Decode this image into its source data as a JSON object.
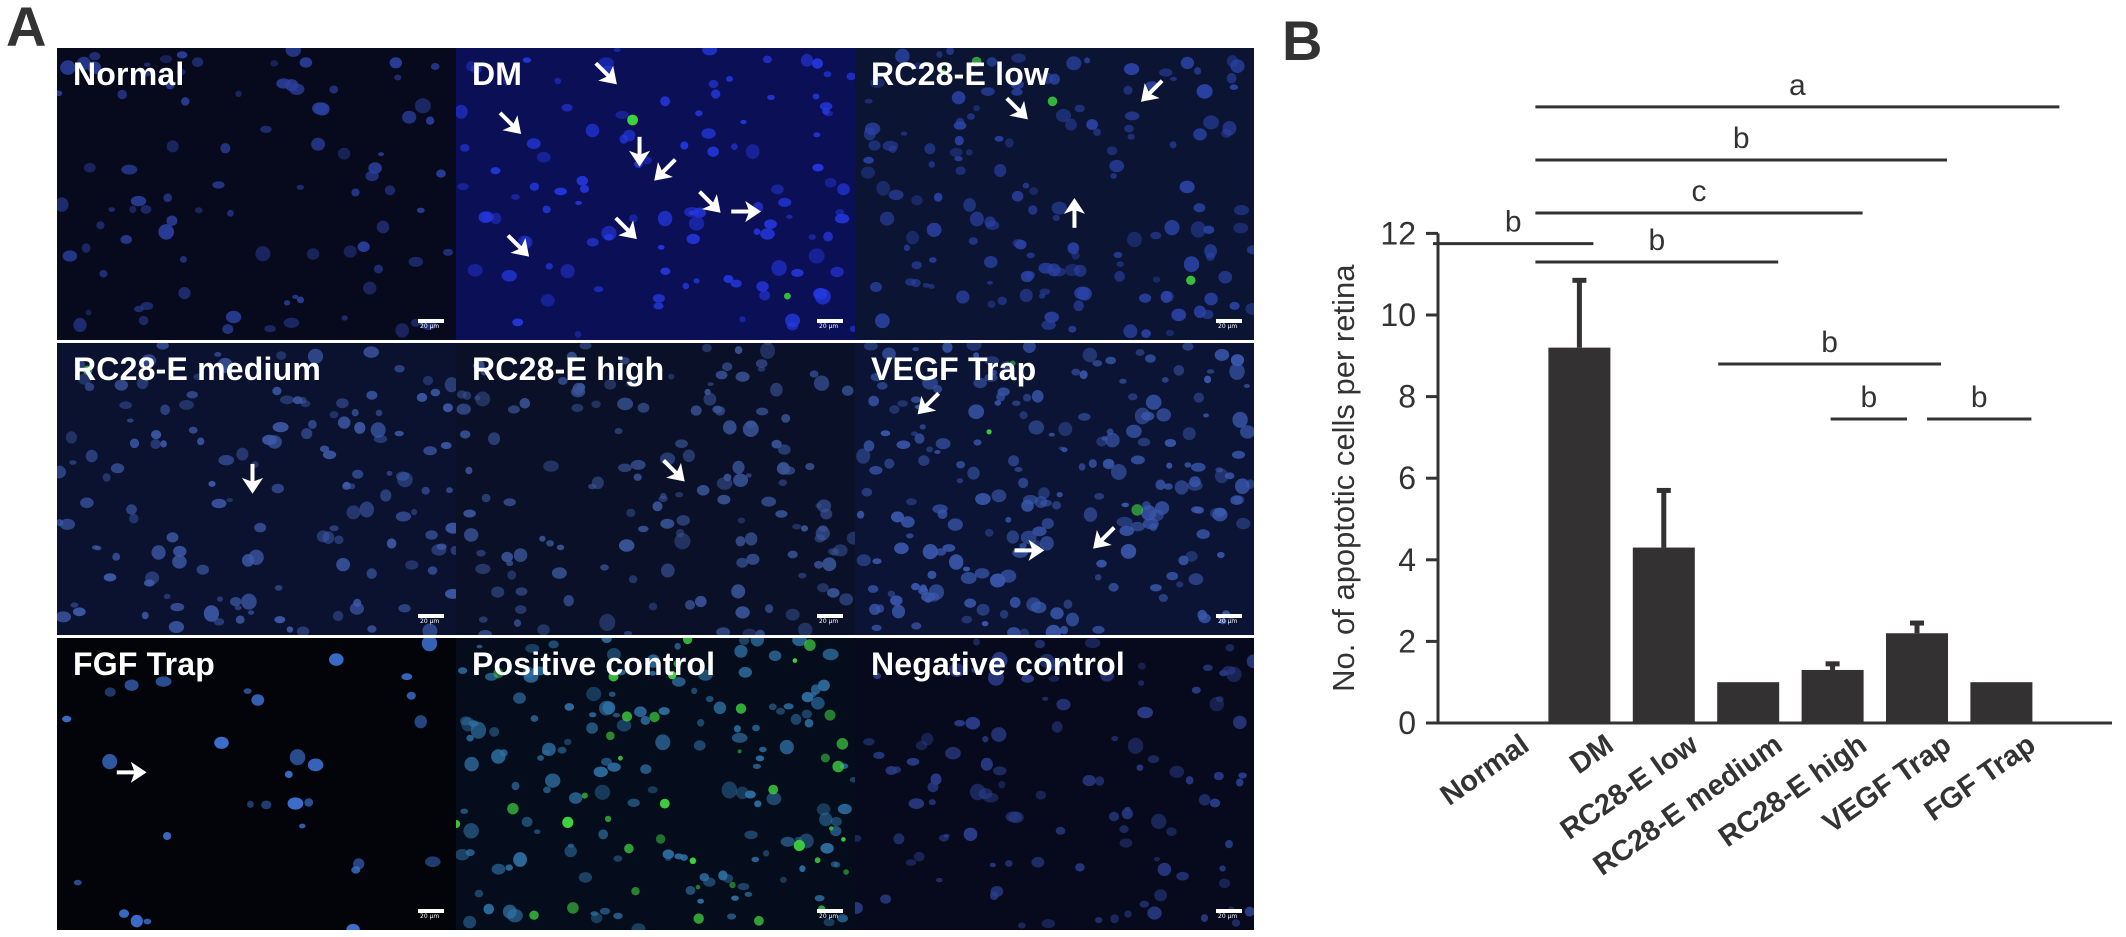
{
  "panel_a": {
    "letter": "A",
    "scale_text": "20 µm",
    "images": [
      {
        "label": "Normal",
        "bg": "#070a1c",
        "cell": "#2b3f9c",
        "density": 90,
        "seed": 3,
        "green": 0,
        "arrows": []
      },
      {
        "label": "DM",
        "bg": "#0b0f55",
        "cell": "#2438e0",
        "density": 110,
        "seed": 11,
        "green": 2,
        "arrows": [
          [
            0.16,
            0.29,
            "dr"
          ],
          [
            0.4,
            0.12,
            "dr"
          ],
          [
            0.46,
            0.4,
            "d"
          ],
          [
            0.5,
            0.45,
            "dl"
          ],
          [
            0.66,
            0.56,
            "dr"
          ],
          [
            0.45,
            0.65,
            "dr"
          ],
          [
            0.18,
            0.71,
            "dr"
          ],
          [
            0.76,
            0.56,
            "r"
          ]
        ]
      },
      {
        "label": "RC28-E low",
        "bg": "#0b1433",
        "cell": "#2b43a6",
        "density": 150,
        "seed": 21,
        "green": 4,
        "arrows": [
          [
            0.43,
            0.24,
            "dr"
          ],
          [
            0.72,
            0.18,
            "dl"
          ],
          [
            0.55,
            0.52,
            "u"
          ]
        ]
      },
      {
        "label": "RC28-E medium",
        "bg": "#0b1230",
        "cell": "#3d5aa8",
        "density": 140,
        "seed": 31,
        "green": 1,
        "arrows": [
          [
            0.49,
            0.51,
            "d"
          ]
        ]
      },
      {
        "label": "RC28-E high",
        "bg": "#0a1027",
        "cell": "#3a5599",
        "density": 150,
        "seed": 41,
        "green": 0,
        "arrows": [
          [
            0.57,
            0.47,
            "dr"
          ]
        ]
      },
      {
        "label": "VEGF Trap",
        "bg": "#0b1434",
        "cell": "#3a58ae",
        "density": 220,
        "seed": 51,
        "green": 3,
        "arrows": [
          [
            0.16,
            0.24,
            "dl"
          ],
          [
            0.47,
            0.71,
            "r"
          ],
          [
            0.6,
            0.7,
            "dl"
          ]
        ]
      },
      {
        "label": "FGF Trap",
        "bg": "#02040a",
        "cell": "#3f74d6",
        "density": 30,
        "seed": 61,
        "green": 0,
        "arrows": [
          [
            0.22,
            0.46,
            "r"
          ]
        ]
      },
      {
        "label": "Positive control",
        "bg": "#050d1c",
        "cell": "#2f70a3",
        "density": 150,
        "seed": 71,
        "green": 40,
        "arrows": []
      },
      {
        "label": "Negative control",
        "bg": "#060a1c",
        "cell": "#2b3e8c",
        "density": 110,
        "seed": 81,
        "green": 0,
        "arrows": []
      }
    ]
  },
  "chart_data": {
    "type": "bar",
    "panel_letter": "B",
    "categories": [
      "Normal",
      "DM",
      "RC28-E low",
      "RC28-E medium",
      "RC28-E high",
      "VEGF Trap",
      "FGF Trap"
    ],
    "values": [
      0,
      9.2,
      4.3,
      1.0,
      1.3,
      2.2,
      1.0
    ],
    "errors": [
      0,
      1.65,
      1.4,
      0,
      0.15,
      0.25,
      0
    ],
    "ylabel": "No. of apoptotic cells per retina",
    "xlabel": "",
    "ylim": [
      0,
      12
    ],
    "yticks": [
      0,
      2,
      4,
      6,
      8,
      10,
      12
    ],
    "bar_color": "#333132",
    "grid": false,
    "significance": [
      {
        "from": "DM",
        "to": "FGF Trap",
        "label": "a",
        "level": 15.1
      },
      {
        "from": "DM",
        "to": "VEGF Trap",
        "label": "b",
        "level": 13.8
      },
      {
        "from": "DM",
        "to": "RC28-E high",
        "label": "c",
        "level": 12.5
      },
      {
        "from": "Normal",
        "to": "DM",
        "label": "b",
        "level": 11.75
      },
      {
        "from": "DM",
        "to": "RC28-E medium",
        "label": "b",
        "level": 11.3
      },
      {
        "from": "RC28-E medium",
        "to": "VEGF Trap",
        "label": "b",
        "level": 8.8
      },
      {
        "from": "RC28-E high",
        "to": "VEGF Trap",
        "label": "b",
        "level": 7.45
      },
      {
        "from": "VEGF Trap",
        "to": "FGF Trap",
        "label": "b",
        "level": 7.45
      }
    ]
  }
}
